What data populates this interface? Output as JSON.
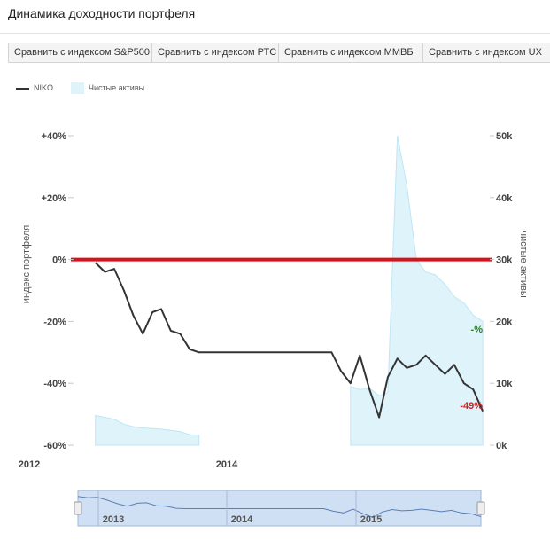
{
  "header": {
    "title": "Динамика доходности портфеля"
  },
  "tabs": [
    {
      "label": "Сравнить с индексом S&P500"
    },
    {
      "label": "Сравнить с индексом РТС"
    },
    {
      "label": "Сравнить с индексом ММВБ"
    },
    {
      "label": "Сравнить с индексом UX"
    }
  ],
  "colors": {
    "index_line": "#333333",
    "assets_fill": "#dff3fb",
    "zero_line": "#d6121b",
    "label_positive": "#2e7d32",
    "label_negative": "#c62828",
    "navigator_fill": "#cfe0f5"
  },
  "chart_data": {
    "type": "line",
    "title": "",
    "legend": {
      "placement": "top-left",
      "entries": [
        "NIKO",
        "Чистые активы"
      ]
    },
    "x_axis": {
      "ticks": [
        "2012",
        "2014"
      ],
      "range": [
        "2012-01",
        "2016-02"
      ]
    },
    "y_left": {
      "label": "индекс портфеля",
      "ticks": [
        "+40%",
        "+20%",
        "0%",
        "-20%",
        "-40%",
        "-60%"
      ],
      "range": [
        -60,
        40
      ]
    },
    "y_right": {
      "label": "чистые активы",
      "ticks": [
        "50k",
        "40k",
        "30k",
        "20k",
        "10k",
        "0k"
      ],
      "range": [
        0,
        50000
      ]
    },
    "series": [
      {
        "name": "NIKO",
        "axis": "left",
        "kind": "line",
        "x": [
          "2012-08",
          "2012-09",
          "2012-10",
          "2012-11",
          "2012-12",
          "2013-01",
          "2013-02",
          "2013-03",
          "2013-04",
          "2013-05",
          "2013-06",
          "2013-07",
          "2013-08",
          "2013-09",
          "2013-10",
          "2013-11",
          "2013-12",
          "2014-01",
          "2014-02",
          "2014-03",
          "2014-04",
          "2014-05",
          "2014-06",
          "2014-07",
          "2014-08",
          "2014-09",
          "2014-10",
          "2014-11",
          "2014-12",
          "2015-01",
          "2015-02",
          "2015-03",
          "2015-04",
          "2015-05",
          "2015-06",
          "2015-07",
          "2015-08",
          "2015-09",
          "2015-10",
          "2015-11",
          "2015-12",
          "2016-01"
        ],
        "y": [
          -1,
          -4,
          -3,
          -10,
          -18,
          -24,
          -17,
          -16,
          -23,
          -24,
          -29,
          -30,
          -30,
          -30,
          -30,
          -30,
          -30,
          -30,
          -30,
          -30,
          -30,
          -30,
          -30,
          -30,
          -30,
          -30,
          -36,
          -40,
          -31,
          -42,
          -51,
          -38,
          -32,
          -35,
          -34,
          -31,
          -34,
          -37,
          -34,
          -40,
          -42,
          -49
        ]
      },
      {
        "name": "Чистые активы",
        "axis": "right",
        "kind": "area",
        "x": [
          "2012-08",
          "2012-09",
          "2012-10",
          "2012-11",
          "2012-12",
          "2013-01",
          "2013-02",
          "2013-03",
          "2013-04",
          "2013-05",
          "2013-06",
          "2013-07",
          "2014-11",
          "2014-12",
          "2015-01",
          "2015-02",
          "2015-03",
          "2015-04",
          "2015-05",
          "2015-06",
          "2015-07",
          "2015-08",
          "2015-09",
          "2015-10",
          "2015-11",
          "2015-12",
          "2016-01"
        ],
        "y": [
          4800,
          4500,
          4200,
          3400,
          3000,
          2800,
          2700,
          2600,
          2400,
          2200,
          1700,
          1600,
          9500,
          9000,
          9200,
          8000,
          8500,
          50000,
          42000,
          30000,
          28000,
          27500,
          26000,
          24000,
          23000,
          21000,
          20000
        ]
      }
    ],
    "annotations": [
      "-%",
      "-49%"
    ],
    "reference_line": {
      "axis": "left",
      "value": 0
    },
    "navigator": {
      "labels": [
        "2013",
        "2014",
        "2015"
      ]
    },
    "grid": false
  }
}
